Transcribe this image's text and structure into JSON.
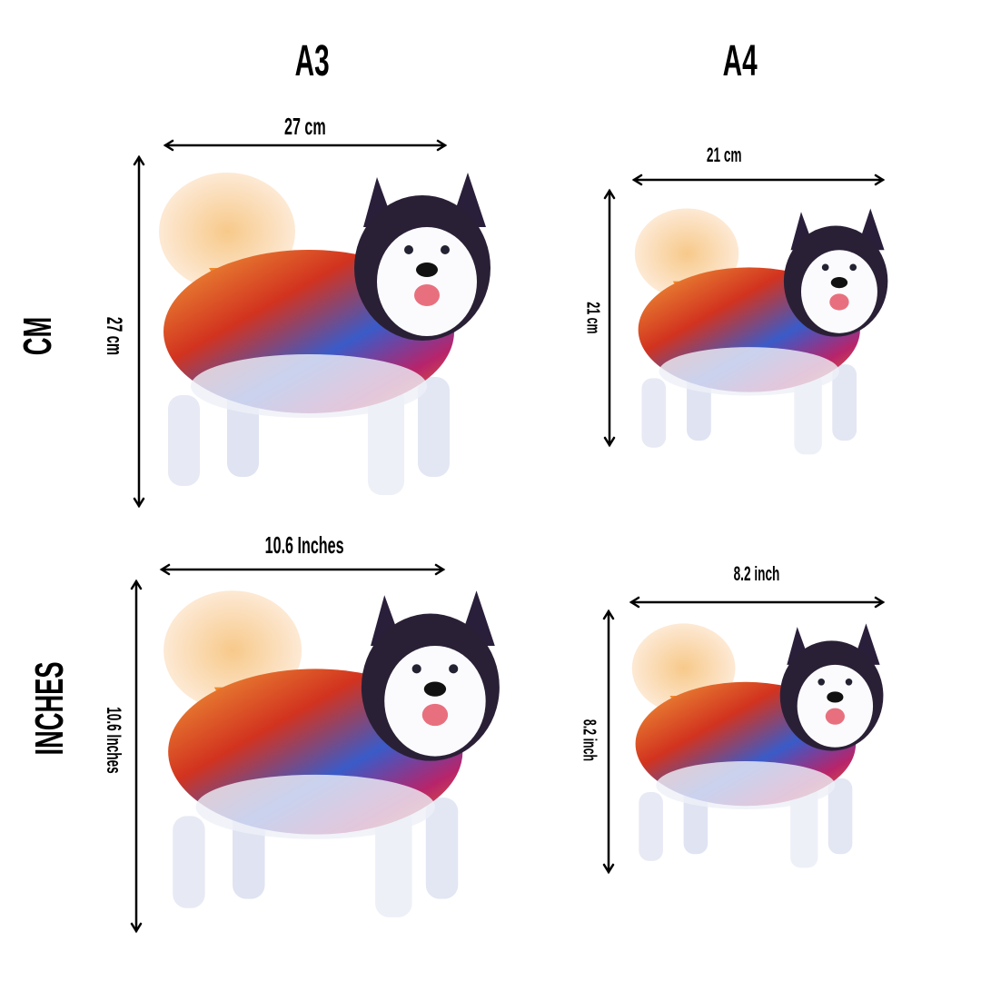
{
  "columns": [
    {
      "label": "A3"
    },
    {
      "label": "A4"
    }
  ],
  "rows": [
    {
      "label": "CM"
    },
    {
      "label": "INCHES"
    }
  ],
  "panels": {
    "a3_cm": {
      "width": "27 cm",
      "height": "27 cm"
    },
    "a4_cm": {
      "width": "21 cm",
      "height": "21 cm"
    },
    "a3_in": {
      "width": "10.6  Inches",
      "height": "10.6 Inches"
    },
    "a4_in": {
      "width": "8.2 inch",
      "height": "8.2 inch"
    }
  },
  "image": {
    "subject": "colorful husky illustration",
    "icon": "dog-illustration"
  },
  "colors": {
    "text": "#000000",
    "background": "#ffffff"
  }
}
